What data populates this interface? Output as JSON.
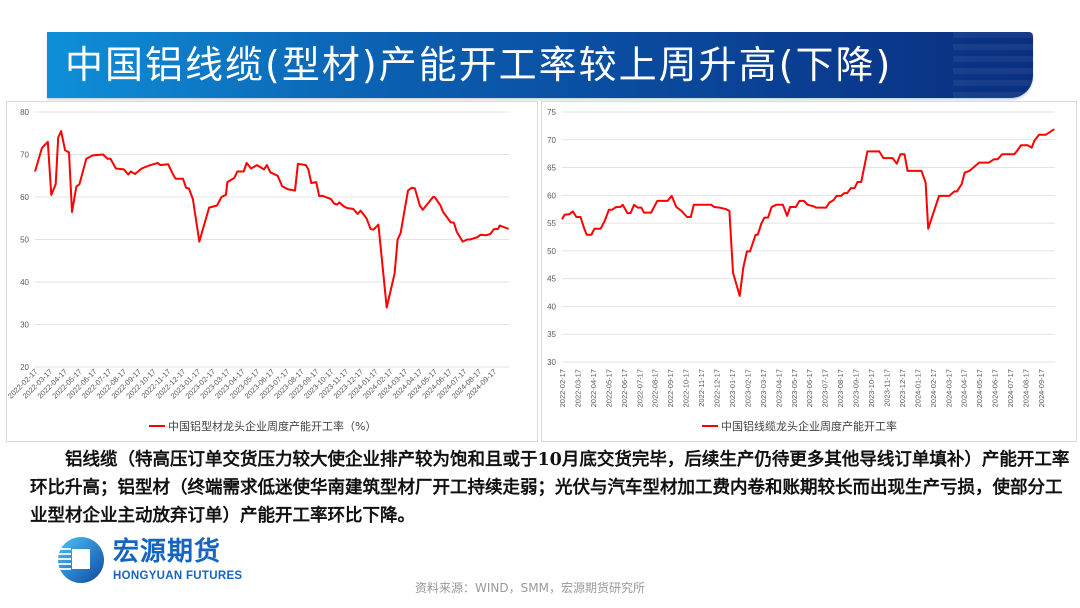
{
  "header": {
    "title": "中国铝线缆(型材)产能开工率较上周升高(下降)"
  },
  "chart_data": [
    {
      "type": "line",
      "legend": "中国铝型材龙头企业周度产能开工率（%）",
      "legend_position": "bottom",
      "grid": true,
      "ylim": [
        20,
        80
      ],
      "yticks": [
        20,
        30,
        40,
        50,
        60,
        70,
        80
      ],
      "series_color": "#ff0000",
      "xticks": [
        "2022-02-17",
        "2022-03-17",
        "2022-04-17",
        "2022-05-17",
        "2022-06-17",
        "2022-07-17",
        "2022-08-17",
        "2022-09-17",
        "2022-10-17",
        "2022-11-17",
        "2022-12-17",
        "2023-01-17",
        "2023-02-17",
        "2023-03-17",
        "2023-04-17",
        "2023-05-17",
        "2023-06-17",
        "2023-07-17",
        "2023-08-17",
        "2023-09-17",
        "2023-10-17",
        "2023-11-17",
        "2023-12-17",
        "2024-01-17",
        "2024-02-17",
        "2024-03-17",
        "2024-04-17",
        "2024-05-17",
        "2024-06-17",
        "2024-07-17",
        "2024-08-17",
        "2024-09-17"
      ],
      "points": [
        [
          "2022-02-17",
          66
        ],
        [
          "2022-03-01",
          71.5
        ],
        [
          "2022-03-13",
          73
        ],
        [
          "2022-03-20",
          60.5
        ],
        [
          "2022-03-29",
          63
        ],
        [
          "2022-04-04",
          74
        ],
        [
          "2022-04-10",
          75.5
        ],
        [
          "2022-04-18",
          71
        ],
        [
          "2022-04-26",
          70.5
        ],
        [
          "2022-05-02",
          56.5
        ],
        [
          "2022-05-11",
          62.5
        ],
        [
          "2022-05-17",
          63
        ],
        [
          "2022-05-31",
          69
        ],
        [
          "2022-06-14",
          69.8
        ],
        [
          "2022-07-05",
          70
        ],
        [
          "2022-07-14",
          69
        ],
        [
          "2022-07-20",
          69
        ],
        [
          "2022-08-01",
          66.7
        ],
        [
          "2022-08-17",
          66.5
        ],
        [
          "2022-08-26",
          65.3
        ],
        [
          "2022-09-01",
          66
        ],
        [
          "2022-09-10",
          65.4
        ],
        [
          "2022-09-23",
          66.7
        ],
        [
          "2022-10-11",
          67.5
        ],
        [
          "2022-10-26",
          68
        ],
        [
          "2022-11-01",
          67.5
        ],
        [
          "2022-11-17",
          67.7
        ],
        [
          "2022-11-26",
          65.5
        ],
        [
          "2022-12-02",
          64.3
        ],
        [
          "2022-12-17",
          64.3
        ],
        [
          "2022-12-23",
          62.2
        ],
        [
          "2022-12-29",
          62
        ],
        [
          "2023-01-07",
          59.5
        ],
        [
          "2023-01-20",
          49.5
        ],
        [
          "2023-02-10",
          57.5
        ],
        [
          "2023-02-26",
          58
        ],
        [
          "2023-03-05",
          60
        ],
        [
          "2023-03-14",
          60.5
        ],
        [
          "2023-03-17",
          63.5
        ],
        [
          "2023-04-01",
          64.5
        ],
        [
          "2023-04-07",
          66
        ],
        [
          "2023-04-20",
          66
        ],
        [
          "2023-04-26",
          68
        ],
        [
          "2023-05-05",
          66.7
        ],
        [
          "2023-05-17",
          67.5
        ],
        [
          "2023-06-01",
          66.5
        ],
        [
          "2023-06-07",
          67.5
        ],
        [
          "2023-06-14",
          65.8
        ],
        [
          "2023-06-29",
          65
        ],
        [
          "2023-07-08",
          62.5
        ],
        [
          "2023-07-20",
          61.8
        ],
        [
          "2023-08-04",
          61.5
        ],
        [
          "2023-08-10",
          67.8
        ],
        [
          "2023-08-26",
          67.5
        ],
        [
          "2023-09-01",
          66.5
        ],
        [
          "2023-09-07",
          63.3
        ],
        [
          "2023-09-17",
          63.5
        ],
        [
          "2023-09-23",
          60.2
        ],
        [
          "2023-09-29",
          60.3
        ],
        [
          "2023-10-17",
          59.5
        ],
        [
          "2023-10-23",
          58.5
        ],
        [
          "2023-10-29",
          58.2
        ],
        [
          "2023-11-04",
          58.7
        ],
        [
          "2023-11-13",
          57.8
        ],
        [
          "2023-11-20",
          57.4
        ],
        [
          "2023-12-02",
          57.2
        ],
        [
          "2023-12-11",
          56
        ],
        [
          "2023-12-17",
          56.8
        ],
        [
          "2023-12-29",
          55
        ],
        [
          "2024-01-07",
          52.5
        ],
        [
          "2024-01-13",
          52.3
        ],
        [
          "2024-01-23",
          53.5
        ],
        [
          "2024-02-10",
          34
        ],
        [
          "2024-02-26",
          42
        ],
        [
          "2024-03-02",
          50
        ],
        [
          "2024-03-08",
          51.5
        ],
        [
          "2024-03-23",
          61.5
        ],
        [
          "2024-04-01",
          62.2
        ],
        [
          "2024-04-07",
          62
        ],
        [
          "2024-04-17",
          58
        ],
        [
          "2024-04-23",
          57
        ],
        [
          "2024-05-14",
          60
        ],
        [
          "2024-05-17",
          60
        ],
        [
          "2024-05-29",
          58
        ],
        [
          "2024-06-04",
          56.5
        ],
        [
          "2024-06-20",
          54
        ],
        [
          "2024-06-26",
          54
        ],
        [
          "2024-07-02",
          51.8
        ],
        [
          "2024-07-14",
          49.5
        ],
        [
          "2024-07-23",
          50
        ],
        [
          "2024-07-29",
          50
        ],
        [
          "2024-08-07",
          50.3
        ],
        [
          "2024-08-13",
          50.5
        ],
        [
          "2024-08-20",
          51.1
        ],
        [
          "2024-09-01",
          51
        ],
        [
          "2024-09-10",
          51.3
        ],
        [
          "2024-09-17",
          52.4
        ],
        [
          "2024-09-26",
          52.5
        ],
        [
          "2024-09-29",
          53.3
        ],
        [
          "2024-10-17",
          52.5
        ]
      ]
    },
    {
      "type": "line",
      "legend": "中国铝线缆龙头企业周度产能开工率",
      "legend_position": "bottom",
      "grid": true,
      "ylim": [
        30,
        75
      ],
      "yticks": [
        30,
        35,
        40,
        45,
        50,
        55,
        60,
        65,
        70,
        75
      ],
      "series_color": "#ff0000",
      "xticks": [
        "2022-02-17",
        "2022-03-17",
        "2022-04-17",
        "2022-05-17",
        "2022-06-17",
        "2022-07-17",
        "2022-08-17",
        "2022-09-17",
        "2022-10-17",
        "2022-11-17",
        "2022-12-17",
        "2023-01-17",
        "2023-02-17",
        "2023-03-17",
        "2023-04-17",
        "2023-05-17",
        "2023-06-17",
        "2023-07-17",
        "2023-08-17",
        "2023-09-17",
        "2023-10-17",
        "2023-11-17",
        "2023-12-17",
        "2024-01-17",
        "2024-02-17",
        "2024-03-17",
        "2024-04-17",
        "2024-05-17",
        "2024-06-17",
        "2024-07-17",
        "2024-08-17",
        "2024-09-17"
      ],
      "points": [
        [
          "2022-02-17",
          55.7
        ],
        [
          "2022-02-22",
          56.5
        ],
        [
          "2022-03-01",
          56.6
        ],
        [
          "2022-03-08",
          57.1
        ],
        [
          "2022-03-15",
          56.1
        ],
        [
          "2022-03-23",
          56.1
        ],
        [
          "2022-03-30",
          54.1
        ],
        [
          "2022-04-05",
          52.9
        ],
        [
          "2022-04-14",
          52.9
        ],
        [
          "2022-04-20",
          54
        ],
        [
          "2022-05-02",
          54
        ],
        [
          "2022-05-10",
          55.4
        ],
        [
          "2022-05-18",
          57.4
        ],
        [
          "2022-05-24",
          57.4
        ],
        [
          "2022-06-02",
          57.9
        ],
        [
          "2022-06-10",
          57.9
        ],
        [
          "2022-06-15",
          58.3
        ],
        [
          "2022-06-24",
          56.8
        ],
        [
          "2022-06-30",
          56.8
        ],
        [
          "2022-07-07",
          58.3
        ],
        [
          "2022-07-14",
          57.8
        ],
        [
          "2022-07-21",
          57.8
        ],
        [
          "2022-07-26",
          56.9
        ],
        [
          "2022-08-10",
          56.9
        ],
        [
          "2022-08-22",
          59
        ],
        [
          "2022-09-12",
          59
        ],
        [
          "2022-09-20",
          59.9
        ],
        [
          "2022-09-29",
          57.9
        ],
        [
          "2022-10-09",
          57.2
        ],
        [
          "2022-10-20",
          56.1
        ],
        [
          "2022-10-27",
          56.1
        ],
        [
          "2022-11-03",
          58.3
        ],
        [
          "2022-12-07",
          58.3
        ],
        [
          "2022-12-13",
          57.9
        ],
        [
          "2022-12-23",
          57.8
        ],
        [
          "2023-01-06",
          57.5
        ],
        [
          "2023-01-12",
          57.2
        ],
        [
          "2023-01-19",
          46.1
        ],
        [
          "2023-02-02",
          41.9
        ],
        [
          "2023-02-09",
          47
        ],
        [
          "2023-02-16",
          49.9
        ],
        [
          "2023-02-22",
          49.9
        ],
        [
          "2023-03-03",
          52.9
        ],
        [
          "2023-03-07",
          52.9
        ],
        [
          "2023-03-14",
          54.9
        ],
        [
          "2023-03-20",
          56
        ],
        [
          "2023-03-27",
          56
        ],
        [
          "2023-04-04",
          57.9
        ],
        [
          "2023-04-13",
          58.3
        ],
        [
          "2023-04-26",
          58.3
        ],
        [
          "2023-05-04",
          56.3
        ],
        [
          "2023-05-10",
          57.9
        ],
        [
          "2023-05-21",
          57.9
        ],
        [
          "2023-05-28",
          59
        ],
        [
          "2023-06-07",
          59
        ],
        [
          "2023-06-14",
          58.3
        ],
        [
          "2023-06-26",
          58
        ],
        [
          "2023-06-30",
          57.8
        ],
        [
          "2023-07-20",
          57.8
        ],
        [
          "2023-07-26",
          58.7
        ],
        [
          "2023-08-04",
          59.1
        ],
        [
          "2023-08-10",
          59.9
        ],
        [
          "2023-08-19",
          59.9
        ],
        [
          "2023-08-25",
          60.4
        ],
        [
          "2023-08-31",
          60.4
        ],
        [
          "2023-09-08",
          61.3
        ],
        [
          "2023-09-15",
          61.3
        ],
        [
          "2023-09-21",
          62.4
        ],
        [
          "2023-09-28",
          62.4
        ],
        [
          "2023-10-10",
          67.9
        ],
        [
          "2023-11-03",
          67.9
        ],
        [
          "2023-11-11",
          66.7
        ],
        [
          "2023-11-29",
          66.7
        ],
        [
          "2023-12-07",
          65.7
        ],
        [
          "2023-12-14",
          67.4
        ],
        [
          "2023-12-22",
          67.4
        ],
        [
          "2023-12-28",
          64.4
        ],
        [
          "2024-01-25",
          64.4
        ],
        [
          "2024-02-03",
          62.3
        ],
        [
          "2024-02-08",
          54
        ],
        [
          "2024-02-29",
          59.9
        ],
        [
          "2024-03-19",
          59.9
        ],
        [
          "2024-03-29",
          60.7
        ],
        [
          "2024-04-04",
          60.7
        ],
        [
          "2024-04-13",
          62
        ],
        [
          "2024-04-19",
          64.1
        ],
        [
          "2024-04-28",
          64.4
        ],
        [
          "2024-05-07",
          65.1
        ],
        [
          "2024-05-17",
          65.9
        ],
        [
          "2024-06-06",
          65.9
        ],
        [
          "2024-06-16",
          66.5
        ],
        [
          "2024-06-23",
          66.5
        ],
        [
          "2024-07-02",
          67.4
        ],
        [
          "2024-07-25",
          67.4
        ],
        [
          "2024-07-30",
          67.9
        ],
        [
          "2024-08-08",
          69
        ],
        [
          "2024-08-21",
          69
        ],
        [
          "2024-08-29",
          68.6
        ],
        [
          "2024-09-04",
          69.8
        ],
        [
          "2024-09-13",
          70.9
        ],
        [
          "2024-09-26",
          70.9
        ],
        [
          "2024-10-13",
          71.9
        ]
      ]
    }
  ],
  "commentary": "铝线缆（特高压订单交货压力较大使企业排产较为饱和且或于10月底交货完毕，后续生产仍待更多其他导线订单填补）产能开工率环比升高；铝型材（终端需求低迷使华南建筑型材厂开工持续走弱；光伏与汽车型材加工费内卷和账期较长而出现生产亏损，使部分工业型材企业主动放弃订单）产能开工率环比下降。",
  "logo": {
    "cn": "宏源期货",
    "en": "HONGYUAN FUTURES",
    "brand_color": "#1565c0"
  },
  "footer": {
    "source": "资料来源：WIND，SMM，宏源期货研究所"
  }
}
